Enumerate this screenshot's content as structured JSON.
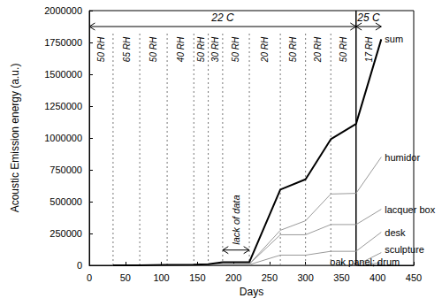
{
  "chart_data": {
    "type": "line",
    "x_label": "Days",
    "y_label": "Acoustic Emission energy (a.u.)",
    "x": [
      33,
      70,
      108,
      145,
      165,
      185,
      222,
      265,
      300,
      335,
      370,
      405
    ],
    "series": [
      {
        "name": "sum",
        "color": "#000000",
        "values": [
          0,
          0,
          3000,
          5000,
          8000,
          25000,
          25000,
          595000,
          675000,
          990000,
          1110000,
          1775000
        ]
      },
      {
        "name": "humidor",
        "color": "#9a9a9a",
        "values": [
          0,
          0,
          1000,
          2000,
          3000,
          10000,
          10000,
          275000,
          350000,
          560000,
          565000,
          850000
        ]
      },
      {
        "name": "lacquer box",
        "color": "#9a9a9a",
        "values": [
          0,
          0,
          1000,
          2000,
          3000,
          10000,
          10000,
          240000,
          240000,
          320000,
          320000,
          440000
        ]
      },
      {
        "name": "desk",
        "color": "#9a9a9a",
        "values": [
          0,
          0,
          1000,
          1000,
          2000,
          5000,
          5000,
          80000,
          80000,
          110000,
          110000,
          260000
        ]
      },
      {
        "name": "sculpture",
        "color": "#9a9a9a",
        "values": [
          0,
          0,
          0,
          0,
          0,
          0,
          0,
          0,
          0,
          0,
          0,
          100000
        ]
      },
      {
        "name": "oak panel; drum",
        "color": "#9a9a9a",
        "values": [
          0,
          0,
          0,
          0,
          0,
          0,
          0,
          0,
          0,
          0,
          0,
          20000
        ]
      }
    ],
    "xlim": [
      0,
      450
    ],
    "xticks": [
      0,
      50,
      100,
      150,
      200,
      250,
      300,
      350,
      400,
      450
    ],
    "ylim": [
      0,
      2000000
    ],
    "yticks": [
      0,
      250000,
      500000,
      750000,
      1000000,
      1250000,
      1500000,
      1750000,
      2000000
    ],
    "grid": false,
    "annotations": {
      "rh_phases": [
        {
          "start": 0,
          "end": 33,
          "label": "50 RH"
        },
        {
          "start": 33,
          "end": 70,
          "label": "65 RH"
        },
        {
          "start": 70,
          "end": 108,
          "label": "50 RH"
        },
        {
          "start": 108,
          "end": 145,
          "label": "40 RH"
        },
        {
          "start": 145,
          "end": 165,
          "label": "50 RH"
        },
        {
          "start": 165,
          "end": 185,
          "label": "30 RH"
        },
        {
          "start": 185,
          "end": 222,
          "label": "50 RH"
        },
        {
          "start": 222,
          "end": 265,
          "label": "20 RH"
        },
        {
          "start": 265,
          "end": 300,
          "label": "50 RH"
        },
        {
          "start": 300,
          "end": 335,
          "label": "20 RH"
        },
        {
          "start": 335,
          "end": 370,
          "label": "50 RH"
        },
        {
          "start": 370,
          "end": 405,
          "label": "17 RH"
        }
      ],
      "temperature_phases": [
        {
          "start": 0,
          "end": 370,
          "label": "22 C"
        },
        {
          "start": 370,
          "end": 405,
          "label": "25 C"
        }
      ],
      "gap": {
        "text": "lack of data",
        "start": 185,
        "end": 222,
        "y": 120000
      }
    }
  }
}
